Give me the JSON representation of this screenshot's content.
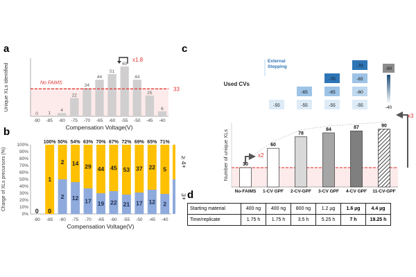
{
  "panels": {
    "a": "a",
    "b": "b",
    "c": "c",
    "d": "d"
  },
  "panel_a": {
    "chart_data": {
      "type": "bar",
      "categories": [
        "-90",
        "-85",
        "-80",
        "-75",
        "-70",
        "-65",
        "-60",
        "-55",
        "-50",
        "-45",
        "-40"
      ],
      "values": [
        0,
        1,
        4,
        22,
        34,
        44,
        51,
        60,
        44,
        25,
        6
      ],
      "ylabel": "Unique XLs identified",
      "xlabel": "Compensation Voltage(V)",
      "ylim": [
        0,
        70
      ],
      "reference_line": {
        "value": 33,
        "label": "33",
        "name": "No FAIMS"
      },
      "annotation": "x1.8",
      "bar_color": "#d0cece",
      "ref_color": "#e0302f"
    }
  },
  "panel_b": {
    "chart_data": {
      "type": "stacked-bar",
      "categories": [
        "-90",
        "-85",
        "-80",
        "-75",
        "-70",
        "-65",
        "-60",
        "-55",
        "-50",
        "-45",
        "-40"
      ],
      "ylabel": "Charge of XLs precursors (%)",
      "xlabel": "Compensation Voltage(V)",
      "ylim": [
        0,
        100
      ],
      "yticks": [
        "0%",
        "10%",
        "20%",
        "30%",
        "40%",
        "50%",
        "60%",
        "70%",
        "80%",
        "90%",
        "100%"
      ],
      "percent_labels": [
        "",
        "100%",
        "50%",
        "54%",
        "63%",
        "70%",
        "67%",
        "72%",
        "69%",
        "65%",
        "71%"
      ],
      "series": [
        {
          "name": "3+",
          "color": "#8faadc",
          "values": [
            null,
            0,
            50,
            46,
            37,
            30,
            33,
            28,
            31,
            35,
            29
          ],
          "labels": [
            "0",
            "0",
            "2",
            "12",
            "17",
            "19",
            "22",
            "21",
            "17",
            "12",
            "2"
          ]
        },
        {
          "name": "≥ 4+",
          "color": "#ffc000",
          "values": [
            null,
            100,
            50,
            54,
            63,
            70,
            67,
            72,
            69,
            65,
            71
          ],
          "labels": [
            "",
            "1",
            "2",
            "14",
            "29",
            "44",
            "45",
            "53",
            "37",
            "22",
            "5"
          ]
        }
      ]
    }
  },
  "panel_c": {
    "used_cvs_label": "Used CVs",
    "external_stepping": "External Stepping",
    "cv_grid": [
      [
        "-55"
      ],
      [
        "-55",
        "-65"
      ],
      [
        "-55",
        "-65",
        "-70"
      ],
      [
        "-55",
        "-60",
        "-65",
        "-70"
      ]
    ],
    "gradient_top": "-90",
    "gradient_bottom": "-40",
    "chart_data": {
      "type": "bar",
      "categories": [
        "No-FAIMS",
        "1-CV GPF",
        "2-CV-GPF",
        "3-CV GPF",
        "4-CV GPF",
        "11-CV-GPF"
      ],
      "values": [
        30,
        60,
        78,
        84,
        87,
        90
      ],
      "ylabel": "Number of unique XLs",
      "ylim": [
        0,
        100
      ],
      "annotations": [
        "x2",
        "x3"
      ],
      "colors": [
        "#ffffff",
        "#ffffff",
        "#d9d9d9",
        "#a6a6a6",
        "#7f7f7f",
        "hatched"
      ]
    }
  },
  "panel_d": {
    "rows": [
      {
        "label": "Starting material",
        "values": [
          "400 ng",
          "400 ng",
          "800 ng",
          "1.2 µg",
          "1.6 µg",
          "4.4 µg"
        ]
      },
      {
        "label": "Time/replicate",
        "values": [
          "1.75 h",
          "1.75 h",
          "3.5 h",
          "5.25 h",
          "7 h",
          "19.25 h"
        ]
      }
    ],
    "bold_columns": [
      4,
      5
    ]
  }
}
